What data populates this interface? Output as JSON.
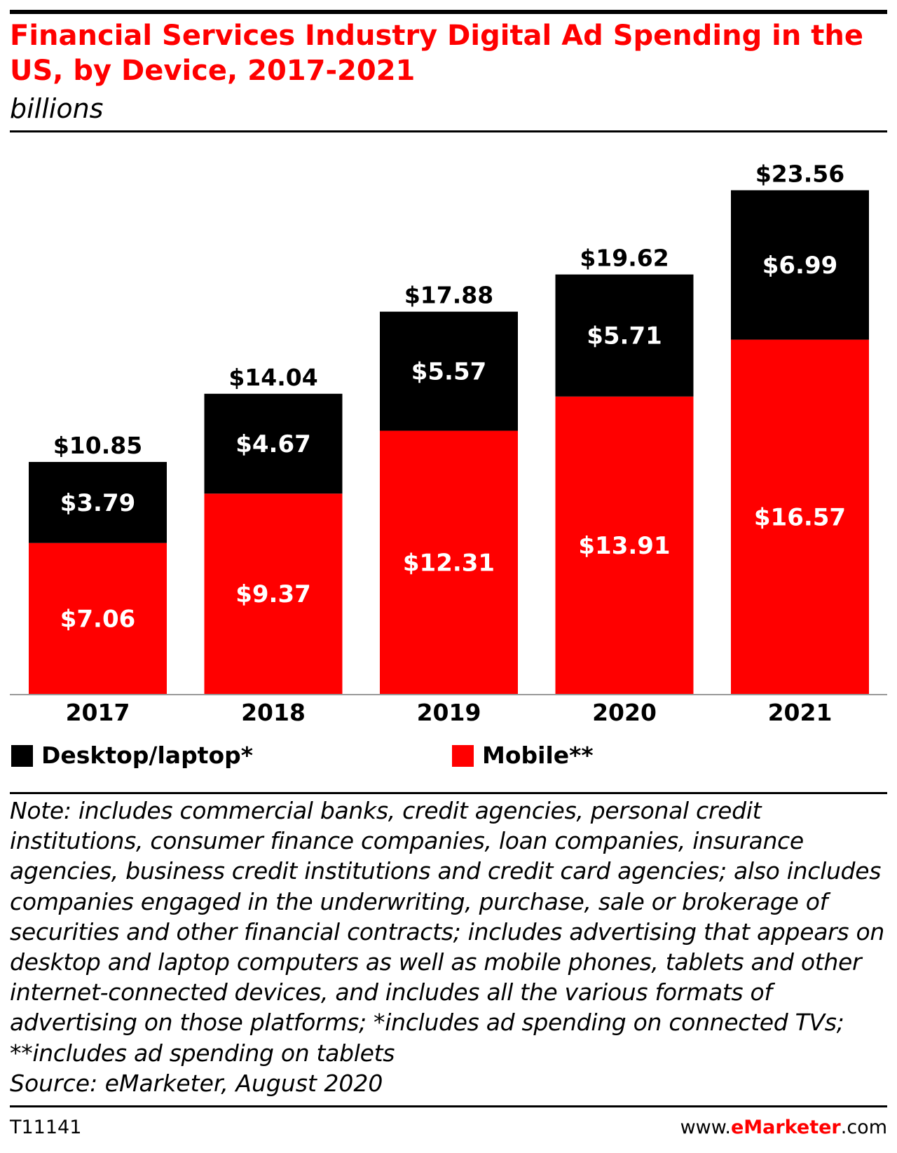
{
  "header": {
    "title": "Financial Services Industry Digital Ad Spending in the US, by Device, 2017-2021",
    "subtitle": "billions"
  },
  "chart_data": {
    "type": "bar",
    "stacked": true,
    "categories": [
      "2017",
      "2018",
      "2019",
      "2020",
      "2021"
    ],
    "series": [
      {
        "name": "Mobile**",
        "color": "#ff0000",
        "values": [
          7.06,
          9.37,
          12.31,
          13.91,
          16.57
        ],
        "labels": [
          "$7.06",
          "$9.37",
          "$12.31",
          "$13.91",
          "$16.57"
        ]
      },
      {
        "name": "Desktop/laptop*",
        "color": "#000000",
        "values": [
          3.79,
          4.67,
          5.57,
          5.71,
          6.99
        ],
        "labels": [
          "$3.79",
          "$4.67",
          "$5.57",
          "$5.71",
          "$6.99"
        ]
      }
    ],
    "totals": [
      10.85,
      14.04,
      17.88,
      19.62,
      23.56
    ],
    "total_labels": [
      "$10.85",
      "$14.04",
      "$17.88",
      "$19.62",
      "$23.56"
    ],
    "title": "Financial Services Industry Digital Ad Spending in the US, by Device, 2017-2021",
    "xlabel": "",
    "ylabel": "",
    "ylim": [
      0,
      26
    ],
    "grid": false,
    "legend_position": "bottom"
  },
  "legend": [
    {
      "label": "Desktop/laptop*",
      "color": "#000000"
    },
    {
      "label": "Mobile**",
      "color": "#ff0000"
    }
  ],
  "footer": {
    "note": "Note: includes commercial banks, credit agencies, personal credit institutions, consumer finance companies, loan companies, insurance agencies, business credit institutions and credit card agencies; also includes companies engaged in the underwriting, purchase, sale or brokerage of securities and other financial contracts; includes advertising that appears on desktop and laptop computers as well as mobile phones, tablets and other internet-connected devices, and includes all the various formats of advertising on those platforms; *includes ad spending on connected TVs; **includes ad spending on tablets",
    "source": "Source: eMarketer, August 2020",
    "chart_id": "T11141",
    "site_prefix": "www.",
    "site_brand": "eMarketer",
    "site_suffix": ".com"
  }
}
